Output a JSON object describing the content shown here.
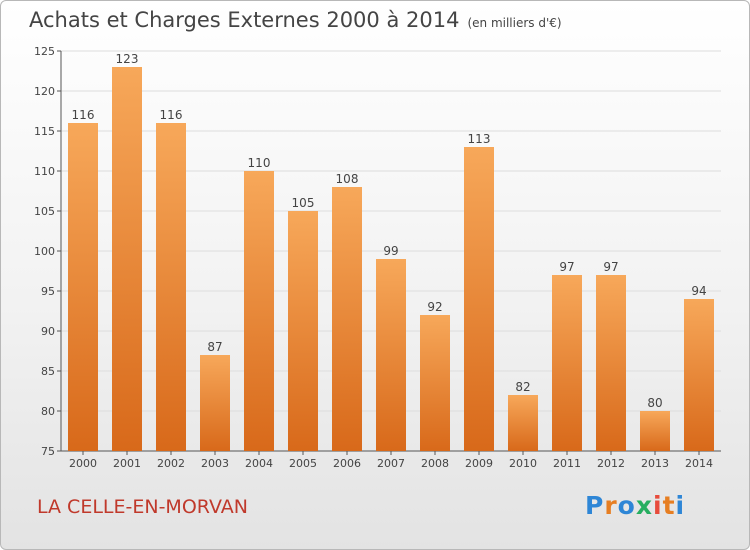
{
  "title": "Achats et Charges Externes 2000 à 2014",
  "unit": "(en milliers d'€)",
  "commune": "LA CELLE-EN-MORVAN",
  "logo": {
    "text": "Proxiti",
    "colors": [
      "#2e86d6",
      "#e67e22",
      "#2e86d6",
      "#27ae60",
      "#e74c3c",
      "#e67e22",
      "#2e86d6"
    ]
  },
  "chart_data": {
    "type": "bar",
    "title": "Achats et Charges Externes 2000 à 2014",
    "ylabel": "(en milliers d'€)",
    "categories": [
      "2000",
      "2001",
      "2002",
      "2003",
      "2004",
      "2005",
      "2006",
      "2007",
      "2008",
      "2009",
      "2010",
      "2011",
      "2012",
      "2013",
      "2014"
    ],
    "values": [
      116,
      123,
      116,
      87,
      110,
      105,
      108,
      99,
      92,
      113,
      82,
      97,
      97,
      80,
      94
    ],
    "ylim": [
      75,
      125
    ],
    "yticks": [
      75,
      80,
      85,
      90,
      95,
      100,
      105,
      110,
      115,
      120,
      125
    ],
    "grid": true,
    "bar_color": "#f0913a"
  }
}
